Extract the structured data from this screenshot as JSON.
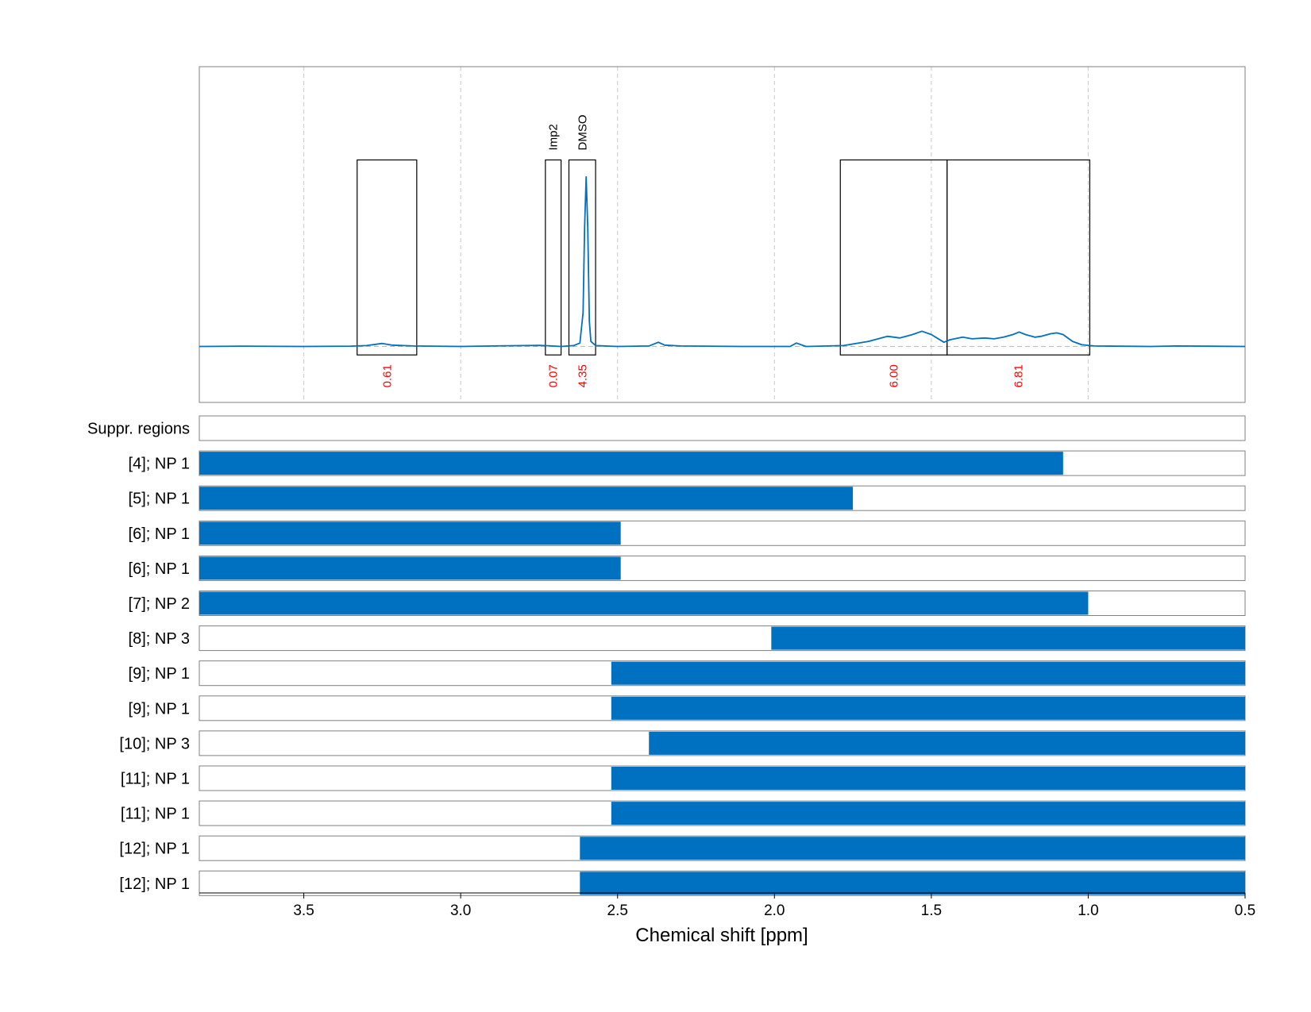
{
  "chart_data": {
    "type": "line",
    "xlabel": "Chemical shift [ppm]",
    "xlim": [
      3.833,
      0.5
    ],
    "x_ticks": [
      "3.5",
      "3.0",
      "2.5",
      "2.0",
      "1.5",
      "1.0",
      "0.5"
    ],
    "x_tick_values": [
      3.5,
      3.0,
      2.5,
      2.0,
      1.5,
      1.0,
      0.5
    ],
    "grid": true,
    "colors": {
      "spectrum": "#0070c0",
      "bar": "#0070c0",
      "integral": "#ff0000",
      "frame": "#808080"
    },
    "spectrum": {
      "ylim": [
        -0.33,
        1.65
      ],
      "points": [
        [
          3.833,
          0.0
        ],
        [
          3.7,
          0.002
        ],
        [
          3.5,
          0.0
        ],
        [
          3.35,
          0.002
        ],
        [
          3.3,
          0.005
        ],
        [
          3.25,
          0.018
        ],
        [
          3.22,
          0.008
        ],
        [
          3.15,
          0.003
        ],
        [
          3.0,
          0.0
        ],
        [
          2.85,
          0.004
        ],
        [
          2.75,
          0.006
        ],
        [
          2.72,
          0.004
        ],
        [
          2.68,
          0.0
        ],
        [
          2.64,
          0.005
        ],
        [
          2.62,
          0.02
        ],
        [
          2.61,
          0.2
        ],
        [
          2.605,
          0.7
        ],
        [
          2.6,
          1.0
        ],
        [
          2.595,
          0.7
        ],
        [
          2.59,
          0.15
        ],
        [
          2.585,
          0.03
        ],
        [
          2.57,
          0.005
        ],
        [
          2.5,
          0.0
        ],
        [
          2.4,
          0.003
        ],
        [
          2.37,
          0.025
        ],
        [
          2.35,
          0.008
        ],
        [
          2.3,
          0.003
        ],
        [
          2.1,
          0.0
        ],
        [
          1.95,
          0.0
        ],
        [
          1.93,
          0.02
        ],
        [
          1.9,
          0.0
        ],
        [
          1.78,
          0.005
        ],
        [
          1.7,
          0.03
        ],
        [
          1.64,
          0.06
        ],
        [
          1.6,
          0.05
        ],
        [
          1.56,
          0.07
        ],
        [
          1.53,
          0.09
        ],
        [
          1.5,
          0.07
        ],
        [
          1.46,
          0.025
        ],
        [
          1.44,
          0.04
        ],
        [
          1.4,
          0.055
        ],
        [
          1.37,
          0.045
        ],
        [
          1.33,
          0.05
        ],
        [
          1.3,
          0.045
        ],
        [
          1.27,
          0.055
        ],
        [
          1.24,
          0.07
        ],
        [
          1.22,
          0.085
        ],
        [
          1.2,
          0.07
        ],
        [
          1.17,
          0.055
        ],
        [
          1.15,
          0.06
        ],
        [
          1.12,
          0.075
        ],
        [
          1.1,
          0.08
        ],
        [
          1.08,
          0.07
        ],
        [
          1.05,
          0.03
        ],
        [
          1.02,
          0.01
        ],
        [
          0.98,
          0.003
        ],
        [
          0.8,
          0.0
        ],
        [
          0.72,
          0.003
        ],
        [
          0.5,
          0.0
        ]
      ]
    },
    "regions": [
      {
        "from": 3.33,
        "to": 3.14,
        "integral": "0.61",
        "label": ""
      },
      {
        "from": 2.73,
        "to": 2.68,
        "integral": "0.07",
        "label": "Imp2"
      },
      {
        "from": 2.655,
        "to": 2.57,
        "integral": "4.35",
        "label": "DMSO"
      },
      {
        "from": 1.79,
        "to": 1.45,
        "integral": "6.00",
        "label": ""
      },
      {
        "from": 1.45,
        "to": 0.995,
        "integral": "6.81",
        "label": ""
      }
    ],
    "rows": [
      {
        "label": "Suppr. regions",
        "from": null,
        "to": null
      },
      {
        "label": "[4]; NP 1",
        "from": 3.833,
        "to": 1.08
      },
      {
        "label": "[5]; NP 1",
        "from": 3.833,
        "to": 1.75
      },
      {
        "label": "[6]; NP 1",
        "from": 3.833,
        "to": 2.49
      },
      {
        "label": "[6]; NP 1",
        "from": 3.833,
        "to": 2.49
      },
      {
        "label": "[7]; NP 2",
        "from": 3.833,
        "to": 1.0
      },
      {
        "label": "[8]; NP 3",
        "from": 2.01,
        "to": 0.5
      },
      {
        "label": "[9]; NP 1",
        "from": 2.52,
        "to": 0.5
      },
      {
        "label": "[9]; NP 1",
        "from": 2.52,
        "to": 0.5
      },
      {
        "label": "[10]; NP 3",
        "from": 2.4,
        "to": 0.5
      },
      {
        "label": "[11]; NP 1",
        "from": 2.52,
        "to": 0.5
      },
      {
        "label": "[11]; NP 1",
        "from": 2.52,
        "to": 0.5
      },
      {
        "label": "[12]; NP 1",
        "from": 2.62,
        "to": 0.5
      },
      {
        "label": "[12]; NP 1",
        "from": 2.62,
        "to": 0.5
      }
    ]
  }
}
